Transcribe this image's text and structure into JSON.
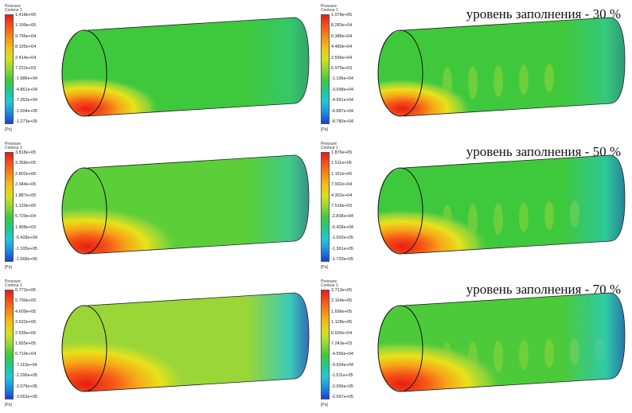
{
  "panels": [
    {
      "caption": "",
      "legend": {
        "title": "Pressure",
        "subtitle": "Contour 1",
        "unit": "[Pa]",
        "values": [
          "1.418e+05",
          "1.199e+05",
          "9.796e+04",
          "8.105e+04",
          "2.414e+04",
          "7.222e+03",
          "-1.986e+04",
          "-4.861e+04",
          "-7.353e+04",
          "-1.004e+05",
          "-1.273e+05"
        ]
      }
    },
    {
      "caption": "уровень заполнения - 30 %",
      "legend": {
        "title": "Pressure",
        "subtitle": "Contour 1",
        "unit": "[Pa]",
        "values": [
          "1.078e+05",
          "8.283e+04",
          "6.388e+04",
          "4.489e+04",
          "2.596e+04",
          "6.975e+03",
          "-1.196e+04",
          "-3.098e+04",
          "-4.991e+04",
          "-6.887e+04",
          "-8.780e+04"
        ]
      }
    },
    {
      "caption": "",
      "legend": {
        "title": "Pressure",
        "subtitle": "Contour 1",
        "unit": "[Pa]",
        "values": [
          "3.818e+05",
          "3.358e+05",
          "2.802e+05",
          "2.344e+05",
          "1.887e+05",
          "1.129e+05",
          "5.720e+04",
          "1.458e+03",
          "-5.428e+04",
          "-1.105e+05",
          "-1.668e+05"
        ]
      }
    },
    {
      "caption": "уровень заполнения - 50 %",
      "legend": {
        "title": "Pressure",
        "subtitle": "Contour 1",
        "unit": "[Pa]",
        "values": [
          "1.876e+05",
          "1.511e+05",
          "1.152e+05",
          "7.902e+04",
          "4.302e+04",
          "7.518e+03",
          "-2.838e+04",
          "-6.428e+04",
          "-1.002e+05",
          "-1.361e+05",
          "-1.720e+05"
        ]
      }
    },
    {
      "caption": "",
      "legend": {
        "title": "Pressure",
        "subtitle": "Contour 1",
        "unit": "[Pa]",
        "values": [
          "6.772e+05",
          "5.799e+05",
          "4.609e+05",
          "3.622e+05",
          "2.636e+05",
          "1.655e+05",
          "6.719e+04",
          "-7.115e+04",
          "-1.296e+05",
          "-2.079e+05",
          "-3.063e+05"
        ]
      }
    },
    {
      "caption": "уровень заполнения - 70 %",
      "legend": {
        "title": "Pressure",
        "subtitle": "Contour 1",
        "unit": "[Pa]",
        "values": [
          "2.713e+05",
          "2.164e+05",
          "1.696e+05",
          "1.128e+05",
          "6.605e+04",
          "7.243e+03",
          "-4.556e+04",
          "-9.934e+04",
          "-1.511e+05",
          "-2.056e+05",
          "-2.597e+05"
        ]
      }
    }
  ],
  "colors": {
    "red": "#e8201a",
    "orange": "#f68a18",
    "yellow": "#f2e21a",
    "green": "#38c83a",
    "lightgreen": "#8fd63a",
    "cyan": "#22c8d8",
    "blue": "#1848d8"
  }
}
